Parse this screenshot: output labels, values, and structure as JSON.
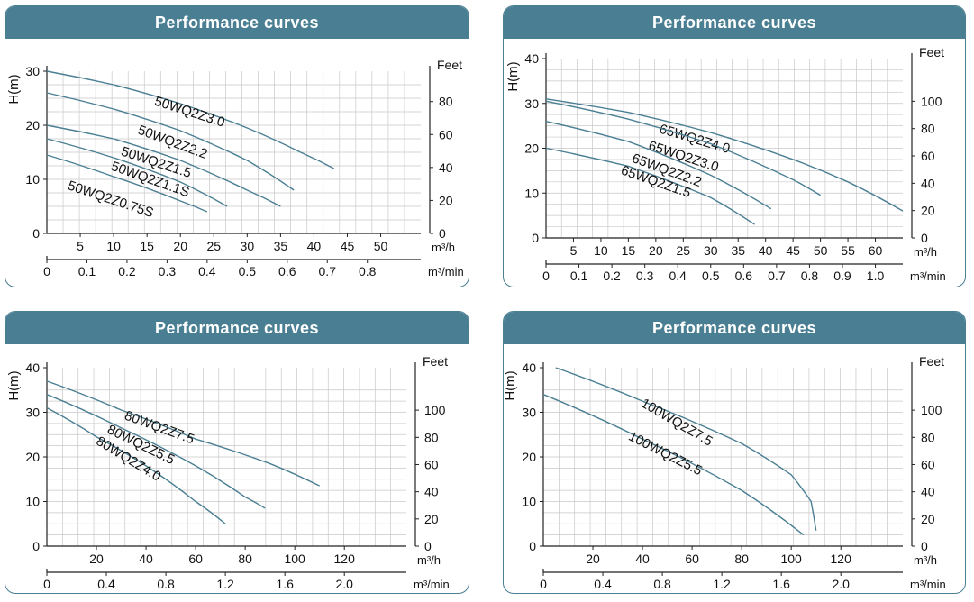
{
  "chart_data": [
    {
      "type": "line",
      "title": "Performance curves",
      "ylabel": "H(m)",
      "ylabel_right": "Feet",
      "xlabel": "m³/h",
      "xlabel2": "m³/min",
      "xlim": [
        0,
        56
      ],
      "ylim": [
        0,
        30
      ],
      "x_ticks": [
        5,
        10,
        15,
        20,
        25,
        30,
        35,
        40,
        45,
        50
      ],
      "x_ticks2": [
        "0",
        "0.1",
        "0.2",
        "0.3",
        "0.4",
        "0.5",
        "0.6",
        "0.7",
        "0.8"
      ],
      "y_ticks": [
        0,
        10,
        20,
        30
      ],
      "y_ticks_right": [
        0,
        20,
        40,
        60,
        80
      ],
      "series": [
        {
          "name": "50WQ2Z3.0",
          "x": [
            0,
            10,
            20,
            30,
            38,
            43
          ],
          "y": [
            30,
            27.5,
            24,
            19.5,
            15,
            12
          ],
          "label_x": 16,
          "label_y": 23.8
        },
        {
          "name": "50WQ2Z2.2",
          "x": [
            0,
            10,
            20,
            30,
            37
          ],
          "y": [
            26,
            23,
            19,
            13.5,
            8
          ],
          "label_x": 13.5,
          "label_y": 18.5
        },
        {
          "name": "50WQ2Z1.5",
          "x": [
            0,
            10,
            20,
            30,
            35
          ],
          "y": [
            20,
            17.5,
            13.5,
            8,
            5
          ],
          "label_x": 11,
          "label_y": 14.5
        },
        {
          "name": "50WQ2Z1.1S",
          "x": [
            0,
            10,
            20,
            27
          ],
          "y": [
            17.5,
            14,
            9.5,
            5
          ],
          "label_x": 9.5,
          "label_y": 11.8
        },
        {
          "name": "50WQ2Z0.75S",
          "x": [
            0,
            10,
            20,
            24
          ],
          "y": [
            14.5,
            10.5,
            6,
            4
          ],
          "label_x": 3,
          "label_y": 8.2
        }
      ]
    },
    {
      "type": "line",
      "title": "Performance curves",
      "ylabel": "H(m)",
      "ylabel_right": "Feet",
      "xlabel": "m³/h",
      "xlabel2": "m³/min",
      "xlim": [
        0,
        65
      ],
      "ylim": [
        0,
        40
      ],
      "x_ticks": [
        5,
        10,
        15,
        20,
        25,
        30,
        35,
        40,
        45,
        50,
        55,
        60
      ],
      "x_ticks2": [
        "0",
        "0.1",
        "0.2",
        "0.3",
        "0.4",
        "0.5",
        "0.6",
        "0.7",
        "0.8",
        "0.9",
        "1.0"
      ],
      "y_ticks": [
        0,
        10,
        20,
        30,
        40
      ],
      "y_ticks_right": [
        0,
        20,
        40,
        60,
        80,
        100
      ],
      "series": [
        {
          "name": "65WQ2Z4.0",
          "x": [
            0,
            15,
            30,
            45,
            55,
            65
          ],
          "y": [
            31,
            28,
            23.5,
            17.5,
            12.5,
            6
          ],
          "label_x": 20.5,
          "label_y": 23.5
        },
        {
          "name": "65WQ2Z3.0",
          "x": [
            0,
            15,
            30,
            45,
            50
          ],
          "y": [
            30.5,
            26.5,
            21,
            13,
            9.5
          ],
          "label_x": 18.5,
          "label_y": 19.8
        },
        {
          "name": "65WQ2Z2.2",
          "x": [
            0,
            15,
            30,
            41
          ],
          "y": [
            26,
            21.5,
            14,
            6.5
          ],
          "label_x": 15.5,
          "label_y": 17
        },
        {
          "name": "65WQ2Z1.5",
          "x": [
            0,
            15,
            30,
            38
          ],
          "y": [
            20,
            16,
            9,
            3
          ],
          "label_x": 13.5,
          "label_y": 14.3
        }
      ]
    },
    {
      "type": "line",
      "title": "Performance curves",
      "ylabel": "H(m)",
      "ylabel_right": "Feet",
      "xlabel": "m³/h",
      "xlabel2": "m³/min",
      "xlim": [
        0,
        145
      ],
      "ylim": [
        0,
        40
      ],
      "x_ticks": [
        20,
        40,
        60,
        80,
        100,
        120
      ],
      "x_ticks2": [
        "0",
        "0.4",
        "0.8",
        "1.2",
        "1.6",
        "2.0"
      ],
      "y_ticks": [
        0,
        10,
        20,
        30,
        40
      ],
      "y_ticks_right": [
        0,
        20,
        40,
        60,
        80,
        100
      ],
      "series": [
        {
          "name": "80WQ2Z7.5",
          "x": [
            0,
            30,
            60,
            90,
            110
          ],
          "y": [
            37,
            30.5,
            24,
            18.5,
            13.5
          ],
          "label_x": 31,
          "label_y": 28.5
        },
        {
          "name": "80WQ2Z5.5",
          "x": [
            0,
            30,
            60,
            80,
            88
          ],
          "y": [
            34,
            26.5,
            18,
            11,
            8.5
          ],
          "label_x": 24,
          "label_y": 25.5
        },
        {
          "name": "80WQ2Z4.0",
          "x": [
            0,
            20,
            40,
            60,
            72
          ],
          "y": [
            31,
            24.5,
            18,
            10,
            5
          ],
          "label_x": 19.5,
          "label_y": 23
        }
      ]
    },
    {
      "type": "line",
      "title": "Performance curves",
      "ylabel": "H(m)",
      "ylabel_right": "Feet",
      "xlabel": "m³/h",
      "xlabel2": "m³/min",
      "xlim": [
        0,
        145
      ],
      "ylim": [
        0,
        40
      ],
      "x_ticks": [
        20,
        40,
        60,
        80,
        100,
        120
      ],
      "x_ticks2": [
        "0",
        "0.4",
        "0.8",
        "1.2",
        "1.6",
        "2.0"
      ],
      "y_ticks": [
        0,
        10,
        20,
        30,
        40
      ],
      "y_ticks_right": [
        0,
        20,
        40,
        60,
        80,
        100
      ],
      "series": [
        {
          "name": "100WQ2Z7.5",
          "x": [
            5,
            40,
            80,
            100,
            108,
            110
          ],
          "y": [
            40,
            32.5,
            23,
            16,
            10,
            3.5
          ],
          "label_x": 39,
          "label_y": 31.5
        },
        {
          "name": "100WQ2Z5.5",
          "x": [
            0,
            40,
            80,
            105
          ],
          "y": [
            34,
            24,
            12.5,
            2.5
          ],
          "label_x": 34,
          "label_y": 24
        }
      ]
    }
  ]
}
